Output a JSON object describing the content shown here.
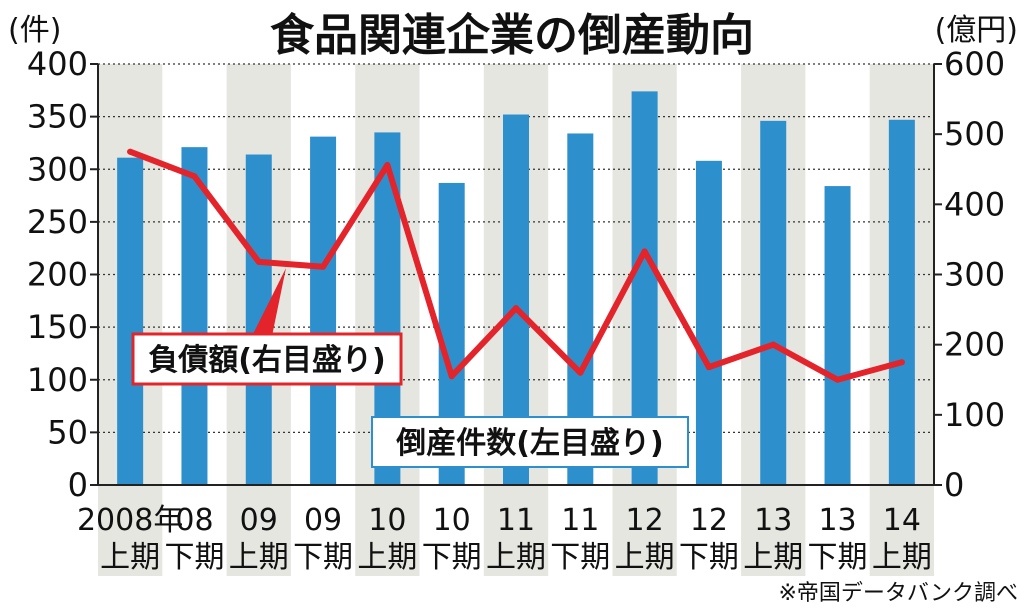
{
  "chart_data": {
    "type": "bar",
    "title": "食品関連企業の倒産動向",
    "left_unit": "(件)",
    "right_unit": "(億円)",
    "categories": [
      {
        "top": "2008年",
        "bottom": "上期"
      },
      {
        "top": "08",
        "bottom": "下期"
      },
      {
        "top": "09",
        "bottom": "上期"
      },
      {
        "top": "09",
        "bottom": "下期"
      },
      {
        "top": "10",
        "bottom": "上期"
      },
      {
        "top": "10",
        "bottom": "下期"
      },
      {
        "top": "11",
        "bottom": "上期"
      },
      {
        "top": "11",
        "bottom": "下期"
      },
      {
        "top": "12",
        "bottom": "上期"
      },
      {
        "top": "12",
        "bottom": "下期"
      },
      {
        "top": "13",
        "bottom": "上期"
      },
      {
        "top": "13",
        "bottom": "下期"
      },
      {
        "top": "14",
        "bottom": "上期"
      }
    ],
    "series": [
      {
        "name": "倒産件数(左目盛り)",
        "kind": "bar",
        "axis": "left",
        "color": "#2e8fcd",
        "values": [
          311,
          321,
          314,
          331,
          335,
          287,
          352,
          334,
          374,
          308,
          346,
          284,
          347
        ]
      },
      {
        "name": "負債額(右目盛り)",
        "kind": "line",
        "axis": "right",
        "color": "#e3242b",
        "values": [
          475,
          440,
          318,
          311,
          456,
          155,
          252,
          160,
          333,
          168,
          200,
          150,
          175
        ]
      }
    ],
    "left_axis": {
      "min": 0,
      "max": 400,
      "ticks": [
        0,
        50,
        100,
        150,
        200,
        250,
        300,
        350,
        400
      ]
    },
    "right_axis": {
      "min": 0,
      "max": 600,
      "ticks": [
        0,
        100,
        200,
        300,
        400,
        500,
        600
      ]
    },
    "grid": true,
    "source": "※帝国データバンク調べ"
  }
}
